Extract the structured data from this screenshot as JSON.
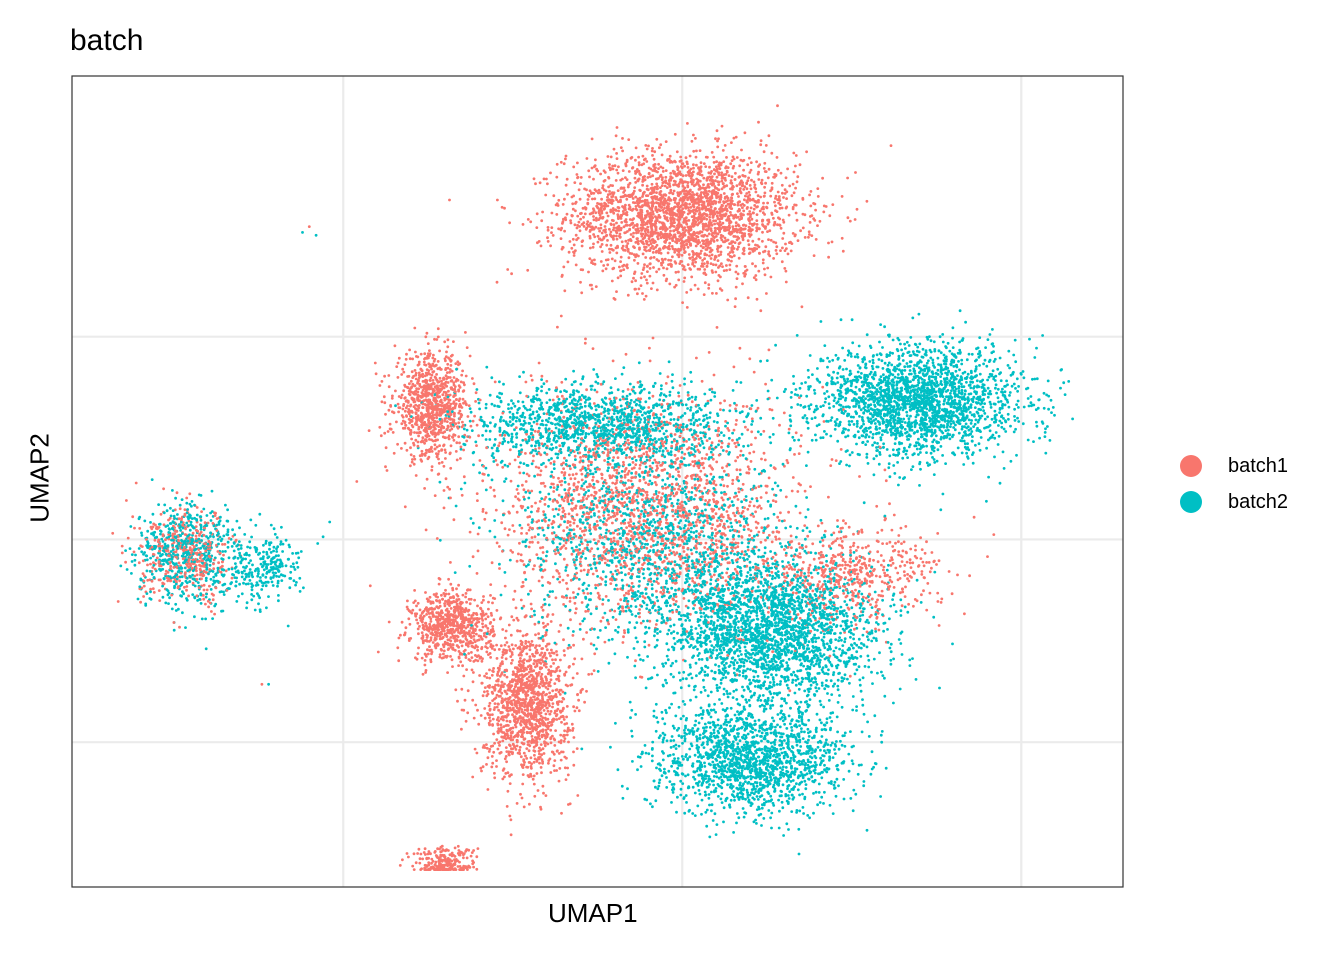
{
  "chart_data": {
    "type": "scatter",
    "title": "batch",
    "xlabel": "UMAP1",
    "ylabel": "UMAP2",
    "xlim": [
      -8,
      7.5
    ],
    "ylim": [
      -6,
      8
    ],
    "x_ticks": [
      -4,
      1,
      6
    ],
    "y_ticks": [
      -3.5,
      0,
      3.5
    ],
    "tick_labels_shown": false,
    "grid": true,
    "legend_position": "right",
    "series": [
      {
        "name": "batch1",
        "color": "#F8766D",
        "clusters": [
          {
            "cx": 1.0,
            "cy": 5.6,
            "sx": 1.7,
            "sy": 1.1,
            "n": 2600
          },
          {
            "cx": -2.7,
            "cy": 2.3,
            "sx": 0.55,
            "sy": 0.9,
            "n": 900
          },
          {
            "cx": -2.4,
            "cy": -1.5,
            "sx": 0.6,
            "sy": 0.6,
            "n": 700
          },
          {
            "cx": -1.3,
            "cy": -2.8,
            "sx": 0.65,
            "sy": 1.3,
            "n": 1300
          },
          {
            "cx": -2.5,
            "cy": -5.6,
            "sx": 0.45,
            "sy": 0.3,
            "n": 250
          },
          {
            "cx": 0.5,
            "cy": 0.5,
            "sx": 2.2,
            "sy": 2.0,
            "n": 2000
          },
          {
            "cx": 3.5,
            "cy": -0.6,
            "sx": 1.3,
            "sy": 0.8,
            "n": 500
          },
          {
            "cx": -6.3,
            "cy": -0.3,
            "sx": 0.7,
            "sy": 0.8,
            "n": 400
          }
        ],
        "outliers": [
          [
            -4.5,
            5.4
          ],
          [
            -5.2,
            -2.5
          ],
          [
            -3.8,
            1.0
          ],
          [
            -3.6,
            -0.8
          ]
        ]
      },
      {
        "name": "batch2",
        "color": "#00BFC4",
        "clusters": [
          {
            "cx": 4.5,
            "cy": 2.4,
            "sx": 1.5,
            "sy": 0.95,
            "n": 2200
          },
          {
            "cx": 2.3,
            "cy": -1.6,
            "sx": 1.6,
            "sy": 1.3,
            "n": 2500
          },
          {
            "cx": 2.0,
            "cy": -3.8,
            "sx": 1.4,
            "sy": 0.9,
            "n": 1600
          },
          {
            "cx": -0.2,
            "cy": 2.0,
            "sx": 2.0,
            "sy": 0.7,
            "n": 1300
          },
          {
            "cx": 0.5,
            "cy": 0.0,
            "sx": 2.0,
            "sy": 1.8,
            "n": 1300
          },
          {
            "cx": -6.3,
            "cy": -0.3,
            "sx": 0.75,
            "sy": 0.9,
            "n": 600
          },
          {
            "cx": -5.2,
            "cy": -0.5,
            "sx": 0.55,
            "sy": 0.6,
            "n": 250
          }
        ],
        "outliers": [
          [
            -4.6,
            5.3
          ],
          [
            -4.4,
            5.25
          ],
          [
            -5.1,
            -2.5
          ],
          [
            -4.2,
            0.3
          ]
        ]
      }
    ]
  }
}
